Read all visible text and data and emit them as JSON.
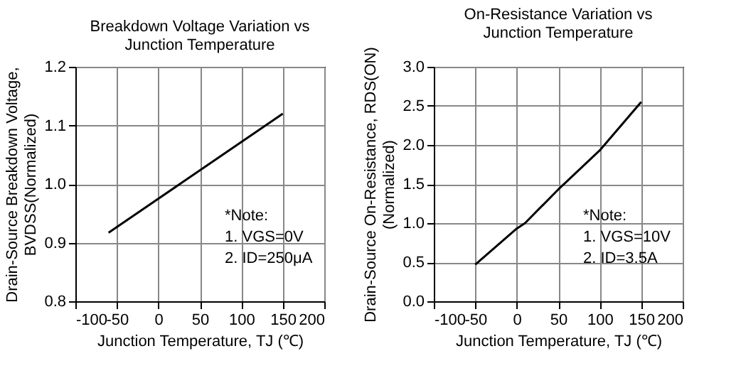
{
  "chart_data": [
    {
      "type": "line",
      "title": "Breakdown Voltage Variation vs\nJunction Temperature",
      "xlabel": "Junction Temperature, TJ (℃)",
      "ylabel": "Drain-Source Breakdown Voltage,\nBVDSS(Normalized)",
      "series": [
        {
          "color": "#000000",
          "x": [
            -60,
            150
          ],
          "values": [
            0.917,
            1.12
          ]
        }
      ],
      "xlim": [
        -100,
        200
      ],
      "xticks": [
        -100,
        -50,
        0,
        50,
        100,
        150,
        200
      ],
      "ylim": [
        0.8,
        1.2
      ],
      "yticks": [
        0.8,
        0.9,
        {
          "value": 1,
          "label": "1.0"
        },
        1.1,
        1.2
      ],
      "annotations": [
        "*Note:",
        "1. VGS=0V",
        "2. ID=250μA"
      ],
      "grid": true,
      "marker": "none",
      "line_style": "solid"
    },
    {
      "type": "line",
      "title": "On-Resistance Variation vs\nJunction Temperature",
      "xlabel": "Junction Temperature, TJ (℃)",
      "ylabel": "Drain-Source On-Resistance, RDS(ON)\n(Normalized)",
      "series": [
        {
          "color": "#000000",
          "x": [
            -50,
            0,
            10,
            50,
            100,
            150
          ],
          "values": [
            0.47,
            0.93,
            1.0,
            1.43,
            1.93,
            2.55
          ]
        }
      ],
      "xlim": [
        -100,
        200
      ],
      "xticks": [
        -100,
        -50,
        0,
        50,
        100,
        150,
        200
      ],
      "ylim": [
        0,
        3
      ],
      "yticks": [
        {
          "value": 0,
          "label": "0.0"
        },
        0.5,
        {
          "value": 1,
          "label": "1.0"
        },
        1.5,
        {
          "value": 2,
          "label": "2.0"
        },
        2.5,
        {
          "value": 3,
          "label": "3.0"
        }
      ],
      "annotations": [
        "*Note:",
        "1. VGS=10V",
        "2. ID=3.5A"
      ],
      "grid": true,
      "marker": "none",
      "line_style": "solid"
    }
  ]
}
